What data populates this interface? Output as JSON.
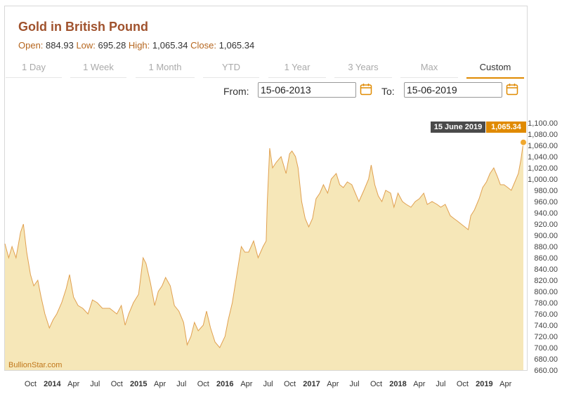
{
  "header": {
    "title": "Gold in British Pound",
    "open_label": "Open:",
    "open_value": "884.93",
    "low_label": "Low:",
    "low_value": "695.28",
    "high_label": "High:",
    "high_value": "1,065.34",
    "close_label": "Close:",
    "close_value": "1,065.34"
  },
  "tabs": [
    "1 Day",
    "1 Week",
    "1 Month",
    "YTD",
    "1 Year",
    "3 Years",
    "Max",
    "Custom"
  ],
  "active_tab": "Custom",
  "range": {
    "from_label": "From:",
    "from_value": "15-06-2013",
    "to_label": "To:",
    "to_value": "15-06-2019"
  },
  "tooltip": {
    "date": "15 June 2019",
    "value": "1,065.34"
  },
  "brand": "BullionStar.com",
  "colors": {
    "title": "#a0522d",
    "accent": "#e08a00",
    "area_fill": "#f6e7b8",
    "line": "#e0a050",
    "marker": "#f0a830"
  },
  "chart_data": {
    "type": "area",
    "title": "Gold in British Pound",
    "xlabel": "",
    "ylabel": "",
    "x_tick_labels": [
      "Oct",
      "2014",
      "Apr",
      "Jul",
      "Oct",
      "2015",
      "Apr",
      "Jul",
      "Oct",
      "2016",
      "Apr",
      "Jul",
      "Oct",
      "2017",
      "Apr",
      "Jul",
      "Oct",
      "2018",
      "Apr",
      "Jul",
      "Oct",
      "2019",
      "Apr"
    ],
    "y_tick_labels": [
      "1,100.00",
      "1,080.00",
      "1,060.00",
      "1,040.00",
      "1,020.00",
      "1,000.00",
      "980.00",
      "960.00",
      "940.00",
      "920.00",
      "900.00",
      "880.00",
      "860.00",
      "840.00",
      "820.00",
      "800.00",
      "780.00",
      "760.00",
      "740.00",
      "720.00",
      "700.00",
      "680.00",
      "660.00"
    ],
    "ylim": [
      660,
      1100
    ],
    "xlim": [
      "2013-06-15",
      "2019-06-15"
    ],
    "grid": false,
    "series": [
      {
        "points": [
          [
            "2013-06-15",
            885
          ],
          [
            "2013-07-01",
            860
          ],
          [
            "2013-07-15",
            880
          ],
          [
            "2013-08-01",
            860
          ],
          [
            "2013-08-20",
            905
          ],
          [
            "2013-09-01",
            920
          ],
          [
            "2013-09-15",
            870
          ],
          [
            "2013-10-01",
            830
          ],
          [
            "2013-10-15",
            810
          ],
          [
            "2013-11-01",
            820
          ],
          [
            "2013-11-15",
            790
          ],
          [
            "2013-12-01",
            760
          ],
          [
            "2013-12-20",
            735
          ],
          [
            "2014-01-05",
            750
          ],
          [
            "2014-01-20",
            760
          ],
          [
            "2014-02-10",
            780
          ],
          [
            "2014-03-01",
            805
          ],
          [
            "2014-03-15",
            830
          ],
          [
            "2014-04-01",
            790
          ],
          [
            "2014-04-20",
            775
          ],
          [
            "2014-05-10",
            770
          ],
          [
            "2014-06-01",
            760
          ],
          [
            "2014-06-20",
            785
          ],
          [
            "2014-07-10",
            780
          ],
          [
            "2014-08-01",
            770
          ],
          [
            "2014-09-01",
            770
          ],
          [
            "2014-10-01",
            760
          ],
          [
            "2014-10-20",
            775
          ],
          [
            "2014-11-05",
            740
          ],
          [
            "2014-11-20",
            760
          ],
          [
            "2014-12-10",
            780
          ],
          [
            "2015-01-01",
            795
          ],
          [
            "2015-01-20",
            860
          ],
          [
            "2015-02-01",
            850
          ],
          [
            "2015-02-20",
            815
          ],
          [
            "2015-03-10",
            775
          ],
          [
            "2015-03-25",
            800
          ],
          [
            "2015-04-10",
            810
          ],
          [
            "2015-04-25",
            825
          ],
          [
            "2015-05-15",
            810
          ],
          [
            "2015-06-01",
            775
          ],
          [
            "2015-06-20",
            765
          ],
          [
            "2015-07-10",
            745
          ],
          [
            "2015-07-25",
            705
          ],
          [
            "2015-08-10",
            720
          ],
          [
            "2015-08-25",
            745
          ],
          [
            "2015-09-10",
            730
          ],
          [
            "2015-10-01",
            740
          ],
          [
            "2015-10-15",
            765
          ],
          [
            "2015-11-01",
            735
          ],
          [
            "2015-11-20",
            710
          ],
          [
            "2015-12-10",
            700
          ],
          [
            "2016-01-01",
            720
          ],
          [
            "2016-01-15",
            750
          ],
          [
            "2016-02-01",
            780
          ],
          [
            "2016-02-20",
            830
          ],
          [
            "2016-03-10",
            880
          ],
          [
            "2016-03-25",
            870
          ],
          [
            "2016-04-10",
            870
          ],
          [
            "2016-05-01",
            890
          ],
          [
            "2016-05-20",
            860
          ],
          [
            "2016-06-10",
            880
          ],
          [
            "2016-06-23",
            890
          ],
          [
            "2016-06-28",
            960
          ],
          [
            "2016-07-08",
            1055
          ],
          [
            "2016-07-20",
            1020
          ],
          [
            "2016-08-05",
            1030
          ],
          [
            "2016-08-25",
            1040
          ],
          [
            "2016-09-15",
            1010
          ],
          [
            "2016-09-30",
            1045
          ],
          [
            "2016-10-10",
            1050
          ],
          [
            "2016-10-25",
            1040
          ],
          [
            "2016-11-05",
            1020
          ],
          [
            "2016-11-20",
            960
          ],
          [
            "2016-12-05",
            930
          ],
          [
            "2016-12-20",
            915
          ],
          [
            "2017-01-05",
            930
          ],
          [
            "2017-01-20",
            965
          ],
          [
            "2017-02-05",
            975
          ],
          [
            "2017-02-20",
            990
          ],
          [
            "2017-03-10",
            975
          ],
          [
            "2017-03-25",
            1000
          ],
          [
            "2017-04-15",
            1010
          ],
          [
            "2017-04-30",
            990
          ],
          [
            "2017-05-15",
            985
          ],
          [
            "2017-06-01",
            995
          ],
          [
            "2017-06-20",
            990
          ],
          [
            "2017-07-05",
            975
          ],
          [
            "2017-07-20",
            960
          ],
          [
            "2017-08-10",
            980
          ],
          [
            "2017-08-30",
            1000
          ],
          [
            "2017-09-10",
            1025
          ],
          [
            "2017-09-25",
            990
          ],
          [
            "2017-10-10",
            970
          ],
          [
            "2017-10-25",
            960
          ],
          [
            "2017-11-10",
            980
          ],
          [
            "2017-12-01",
            975
          ],
          [
            "2017-12-15",
            950
          ],
          [
            "2018-01-01",
            975
          ],
          [
            "2018-01-20",
            960
          ],
          [
            "2018-02-05",
            955
          ],
          [
            "2018-02-25",
            950
          ],
          [
            "2018-03-15",
            960
          ],
          [
            "2018-04-01",
            965
          ],
          [
            "2018-04-20",
            975
          ],
          [
            "2018-05-05",
            955
          ],
          [
            "2018-05-25",
            960
          ],
          [
            "2018-06-15",
            955
          ],
          [
            "2018-07-01",
            950
          ],
          [
            "2018-07-20",
            955
          ],
          [
            "2018-08-10",
            935
          ],
          [
            "2018-08-25",
            930
          ],
          [
            "2018-09-10",
            925
          ],
          [
            "2018-09-25",
            920
          ],
          [
            "2018-10-10",
            915
          ],
          [
            "2018-10-25",
            910
          ],
          [
            "2018-11-05",
            935
          ],
          [
            "2018-11-20",
            945
          ],
          [
            "2018-12-10",
            965
          ],
          [
            "2018-12-25",
            985
          ],
          [
            "2019-01-10",
            995
          ],
          [
            "2019-01-25",
            1010
          ],
          [
            "2019-02-10",
            1020
          ],
          [
            "2019-02-25",
            1005
          ],
          [
            "2019-03-10",
            990
          ],
          [
            "2019-03-25",
            990
          ],
          [
            "2019-04-10",
            985
          ],
          [
            "2019-04-25",
            980
          ],
          [
            "2019-05-10",
            995
          ],
          [
            "2019-05-25",
            1010
          ],
          [
            "2019-06-05",
            1035
          ],
          [
            "2019-06-15",
            1065.34
          ]
        ]
      }
    ],
    "highlight_point": [
      "2019-06-15",
      1065.34
    ]
  }
}
